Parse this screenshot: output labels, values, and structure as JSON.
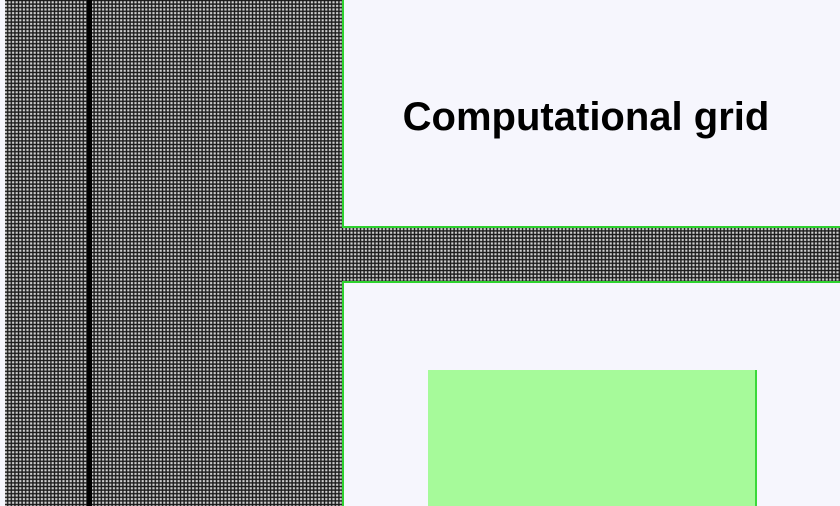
{
  "title": "Computational grid"
}
